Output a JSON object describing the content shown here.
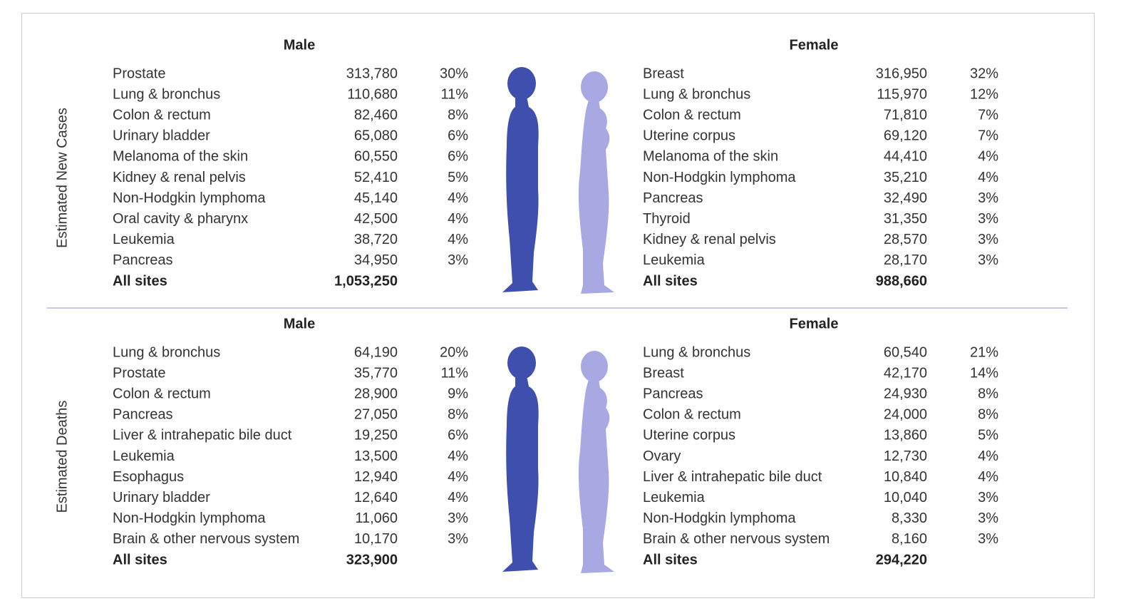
{
  "sections": [
    {
      "label": "Estimated New Cases",
      "male": {
        "heading": "Male",
        "rows": [
          [
            "Prostate",
            "313,780",
            "30%"
          ],
          [
            "Lung & bronchus",
            "110,680",
            "11%"
          ],
          [
            "Colon & rectum",
            "82,460",
            "8%"
          ],
          [
            "Urinary bladder",
            "65,080",
            "6%"
          ],
          [
            "Melanoma of the skin",
            "60,550",
            "6%"
          ],
          [
            "Kidney & renal pelvis",
            "52,410",
            "5%"
          ],
          [
            "Non-Hodgkin lymphoma",
            "45,140",
            "4%"
          ],
          [
            "Oral cavity & pharynx",
            "42,500",
            "4%"
          ],
          [
            "Leukemia",
            "38,720",
            "4%"
          ],
          [
            "Pancreas",
            "34,950",
            "3%"
          ]
        ],
        "total": [
          "All sites",
          "1,053,250"
        ]
      },
      "female": {
        "heading": "Female",
        "rows": [
          [
            "Breast",
            "316,950",
            "32%"
          ],
          [
            "Lung & bronchus",
            "115,970",
            "12%"
          ],
          [
            "Colon & rectum",
            "71,810",
            "7%"
          ],
          [
            "Uterine corpus",
            "69,120",
            "7%"
          ],
          [
            "Melanoma of the skin",
            "44,410",
            "4%"
          ],
          [
            "Non-Hodgkin lymphoma",
            "35,210",
            "4%"
          ],
          [
            "Pancreas",
            "32,490",
            "3%"
          ],
          [
            "Thyroid",
            "31,350",
            "3%"
          ],
          [
            "Kidney & renal pelvis",
            "28,570",
            "3%"
          ],
          [
            "Leukemia",
            "28,170",
            "3%"
          ]
        ],
        "total": [
          "All sites",
          "988,660"
        ]
      }
    },
    {
      "label": "Estimated Deaths",
      "male": {
        "heading": "Male",
        "rows": [
          [
            "Lung & bronchus",
            "64,190",
            "20%"
          ],
          [
            "Prostate",
            "35,770",
            "11%"
          ],
          [
            "Colon & rectum",
            "28,900",
            "9%"
          ],
          [
            "Pancreas",
            "27,050",
            "8%"
          ],
          [
            "Liver & intrahepatic bile duct",
            "19,250",
            "6%"
          ],
          [
            "Leukemia",
            "13,500",
            "4%"
          ],
          [
            "Esophagus",
            "12,940",
            "4%"
          ],
          [
            "Urinary bladder",
            "12,640",
            "4%"
          ],
          [
            "Non-Hodgkin lymphoma",
            "11,060",
            "3%"
          ],
          [
            "Brain & other nervous system",
            "10,170",
            "3%"
          ]
        ],
        "total": [
          "All sites",
          "323,900"
        ]
      },
      "female": {
        "heading": "Female",
        "rows": [
          [
            "Lung & bronchus",
            "60,540",
            "21%"
          ],
          [
            "Breast",
            "42,170",
            "14%"
          ],
          [
            "Pancreas",
            "24,930",
            "8%"
          ],
          [
            "Colon & rectum",
            "24,000",
            "8%"
          ],
          [
            "Uterine corpus",
            "13,860",
            "5%"
          ],
          [
            "Ovary",
            "12,730",
            "4%"
          ],
          [
            "Liver & intrahepatic bile duct",
            "10,840",
            "4%"
          ],
          [
            "Leukemia",
            "10,040",
            "3%"
          ],
          [
            "Non-Hodgkin lymphoma",
            "8,330",
            "3%"
          ],
          [
            "Brain & other nervous system",
            "8,160",
            "3%"
          ]
        ],
        "total": [
          "All sites",
          "294,220"
        ]
      }
    }
  ]
}
